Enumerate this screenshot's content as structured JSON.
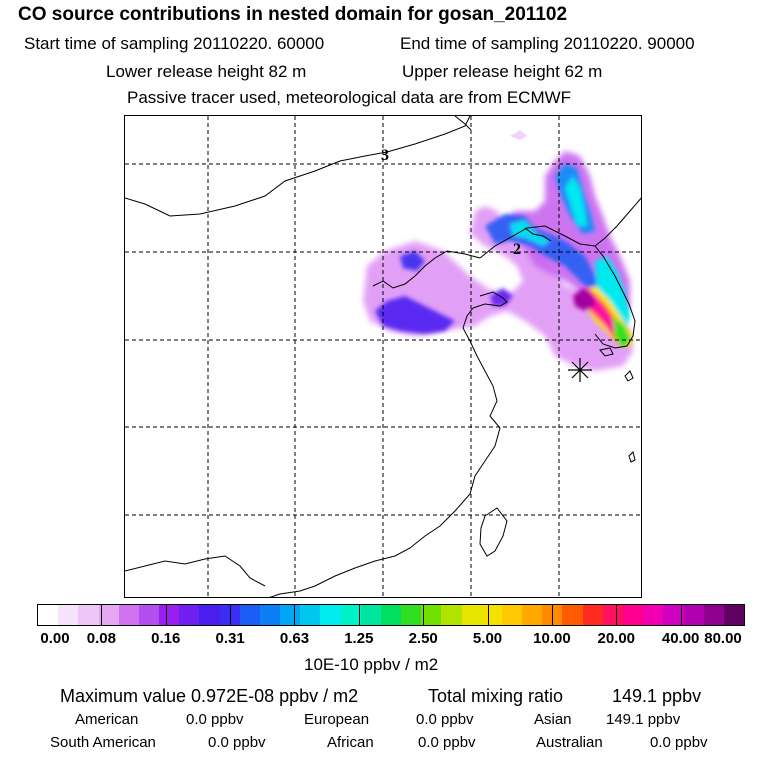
{
  "title": "CO  source contributions in nested domain for gosan_201102",
  "start_label": "Start time of sampling 20110220. 60000",
  "end_label": "End time of sampling 20110220. 90000",
  "lower_label": "Lower release height   82 m",
  "upper_label": "Upper release height   62 m",
  "tracer_note": "Passive tracer used, meteorological data are from ECMWF",
  "map": {
    "contour_labels": [
      "3",
      "2"
    ],
    "receptor_marker": "gosan-receptor"
  },
  "colorbar": {
    "unit": "10E-10 ppbv / m2",
    "ticks": [
      "0.00",
      "0.08",
      "0.16",
      "0.31",
      "0.63",
      "1.25",
      "2.50",
      "5.00",
      "10.00",
      "20.00",
      "40.00",
      "80.00"
    ],
    "colors": [
      "#ffffff",
      "#f7e3fb",
      "#efc7f7",
      "#e6a8f3",
      "#cf73f0",
      "#b34ef0",
      "#9a1fef",
      "#6f1ff0",
      "#4b1ff0",
      "#3b2df2",
      "#1a5cf5",
      "#0c7ff7",
      "#00a5f5",
      "#00c8f0",
      "#00ecf0",
      "#00f0c8",
      "#00e6a0",
      "#00e060",
      "#30e020",
      "#70e000",
      "#b0e400",
      "#e6e600",
      "#f5e100",
      "#ffc800",
      "#ffa800",
      "#ff8a00",
      "#ff5a00",
      "#ff2a20",
      "#ff1060",
      "#ff0090",
      "#f000b0",
      "#d000c0",
      "#b000b0",
      "#900090",
      "#600060"
    ]
  },
  "stats": {
    "max_label": "Maximum value  0.972E-08 ppbv / m2",
    "total_label": "Total mixing ratio",
    "total_value": "149.1 ppbv",
    "american_label": "American",
    "american_value": "0.0 ppbv",
    "european_label": "European",
    "european_value": "0.0 ppbv",
    "asian_label": "Asian",
    "asian_value": "149.1 ppbv",
    "south_american_label": "South American",
    "south_american_value": "0.0 ppbv",
    "african_label": "African",
    "african_value": "0.0 ppbv",
    "australian_label": "Australian",
    "australian_value": "0.0 ppbv"
  }
}
